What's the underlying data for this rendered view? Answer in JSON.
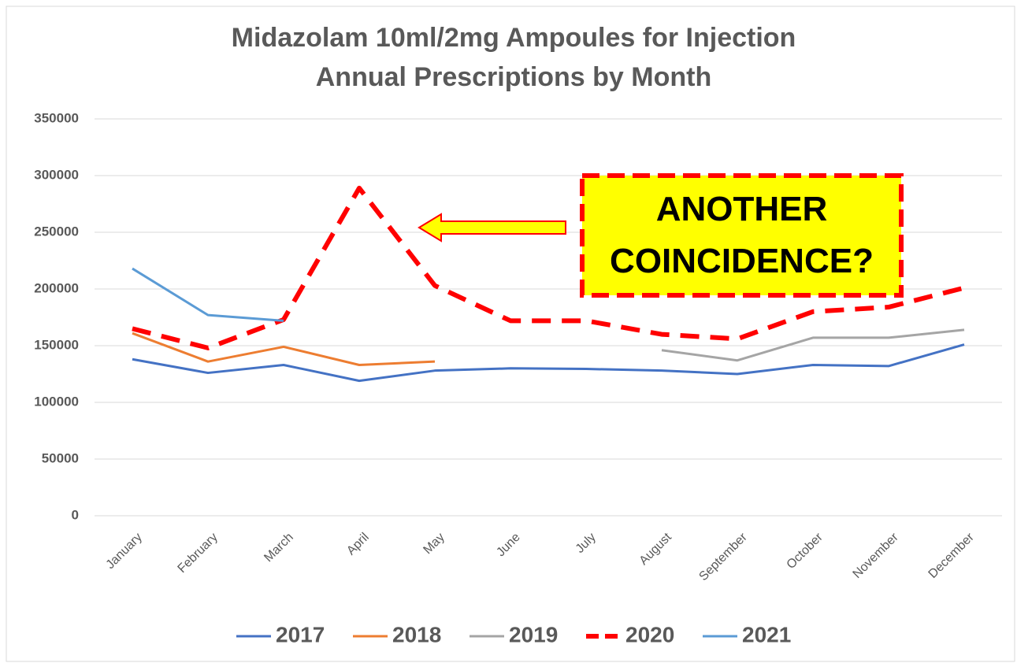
{
  "chart_data": {
    "type": "line",
    "title": "Midazolam 10ml/2mg Ampoules for Injection",
    "subtitle": "Annual Prescriptions by Month",
    "categories": [
      "January",
      "February",
      "March",
      "April",
      "May",
      "June",
      "July",
      "August",
      "September",
      "October",
      "November",
      "December"
    ],
    "series": [
      {
        "name": "2017",
        "color": "#4472c4",
        "dashed": false,
        "values": [
          138000,
          126000,
          133000,
          119000,
          128000,
          130000,
          129500,
          128000,
          125000,
          133000,
          132000,
          151000
        ]
      },
      {
        "name": "2018",
        "color": "#ed7d31",
        "dashed": false,
        "values": [
          161000,
          136000,
          149000,
          133000,
          136000,
          null,
          null,
          null,
          null,
          null,
          null,
          null
        ]
      },
      {
        "name": "2019",
        "color": "#a5a5a5",
        "dashed": false,
        "values": [
          null,
          null,
          null,
          null,
          null,
          null,
          null,
          146000,
          137000,
          157000,
          157000,
          164000
        ]
      },
      {
        "name": "2020",
        "color": "#ff0000",
        "dashed": true,
        "values": [
          165000,
          148000,
          173000,
          289000,
          203000,
          172000,
          172000,
          160000,
          156000,
          180000,
          184000,
          201000
        ]
      },
      {
        "name": "2021",
        "color": "#5b9bd5",
        "dashed": false,
        "values": [
          218000,
          177000,
          172000,
          null,
          null,
          null,
          null,
          null,
          null,
          null,
          null,
          null
        ]
      }
    ],
    "ylim": [
      0,
      350000
    ],
    "yticks": [
      0,
      50000,
      100000,
      150000,
      200000,
      250000,
      300000,
      350000
    ],
    "grid": true,
    "legend": "bottom",
    "annotation": "ANOTHER COINCIDENCE?"
  }
}
